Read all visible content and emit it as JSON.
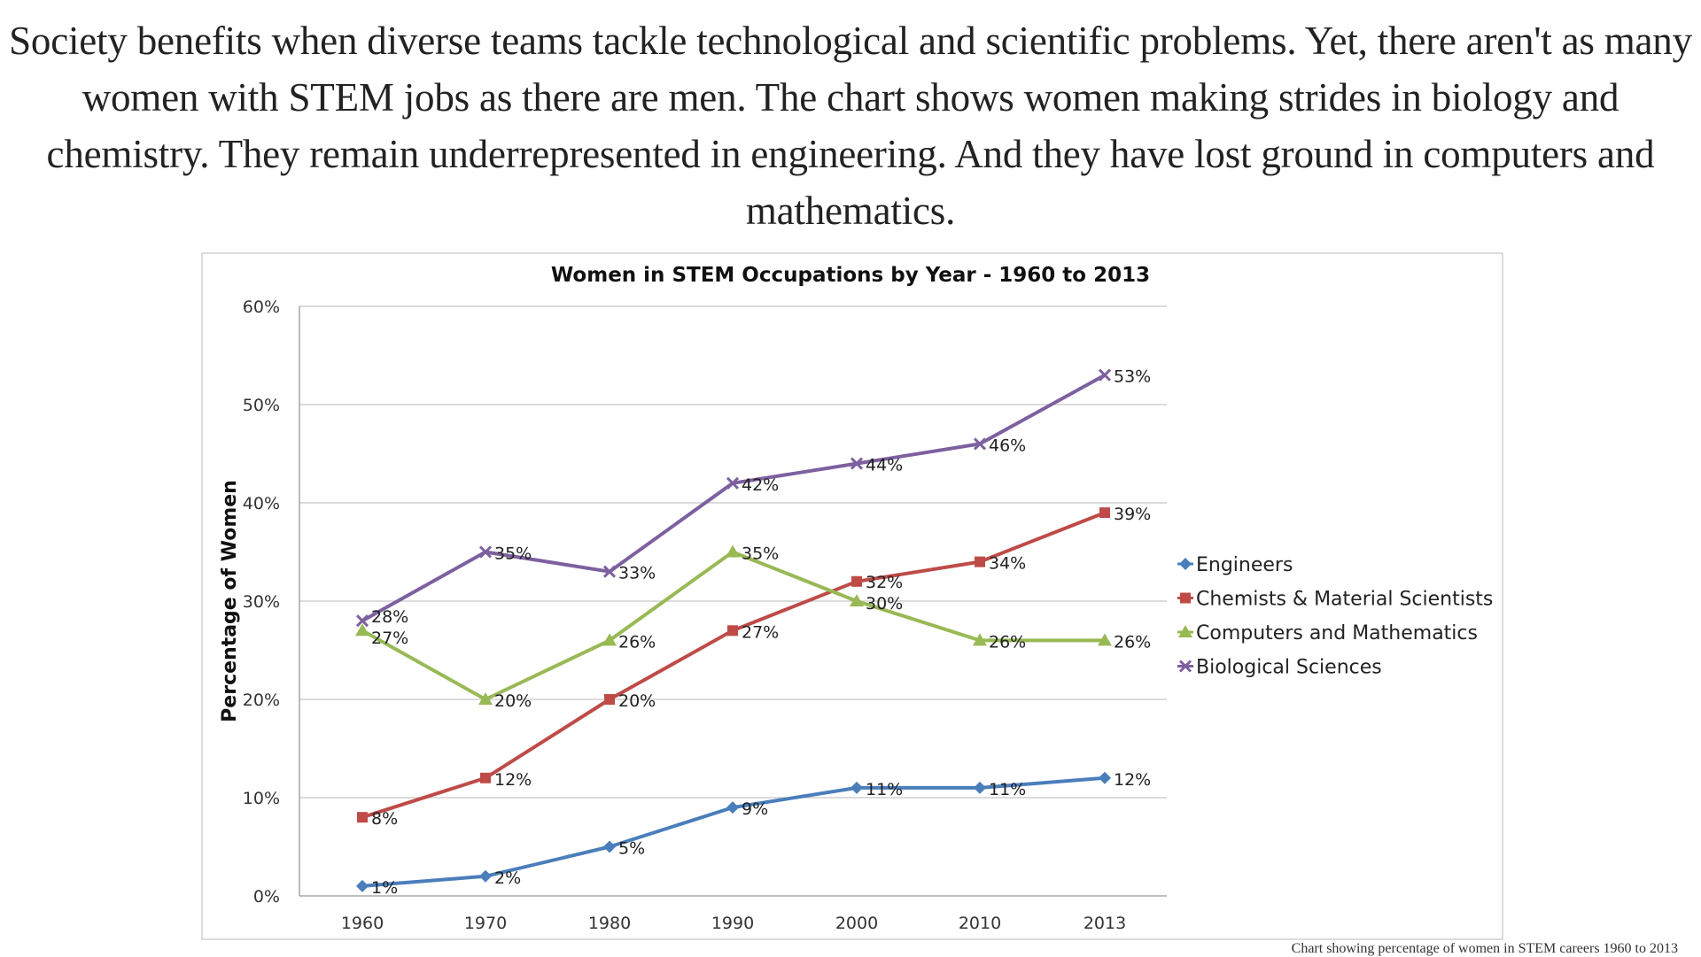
{
  "intro_text": "Society benefits when diverse teams tackle technological and scientific problems. Yet, there aren't as many women with STEM jobs as there are men. The chart shows women making strides in biology and chemistry. They remain underrepresented in engineering. And they have lost ground in computers and mathematics.",
  "caption": "Chart showing percentage of women in STEM careers 1960 to 2013",
  "chart_data": {
    "type": "line",
    "title": "Women in STEM Occupations by Year - 1960 to 2013",
    "xlabel": "",
    "ylabel": "Percentage of Women",
    "categories": [
      "1960",
      "1970",
      "1980",
      "1990",
      "2000",
      "2010",
      "2013"
    ],
    "ylim": [
      0,
      60
    ],
    "yticks": [
      "0%",
      "10%",
      "20%",
      "30%",
      "40%",
      "50%",
      "60%"
    ],
    "grid": true,
    "legend_position": "right",
    "data_labels": true,
    "series": [
      {
        "name": "Engineers",
        "values": [
          1,
          2,
          5,
          9,
          11,
          11,
          12
        ],
        "color": "#4a7ebb",
        "marker": "diamond"
      },
      {
        "name": "Chemists & Material Scientists",
        "values": [
          8,
          12,
          20,
          27,
          32,
          34,
          39
        ],
        "color": "#be4b48",
        "marker": "square"
      },
      {
        "name": "Computers and Mathematics",
        "values": [
          27,
          20,
          26,
          35,
          30,
          26,
          26
        ],
        "color": "#98b954",
        "marker": "triangle"
      },
      {
        "name": "Biological Sciences",
        "values": [
          28,
          35,
          33,
          42,
          44,
          46,
          53
        ],
        "color": "#7d60a0",
        "marker": "x"
      }
    ]
  }
}
